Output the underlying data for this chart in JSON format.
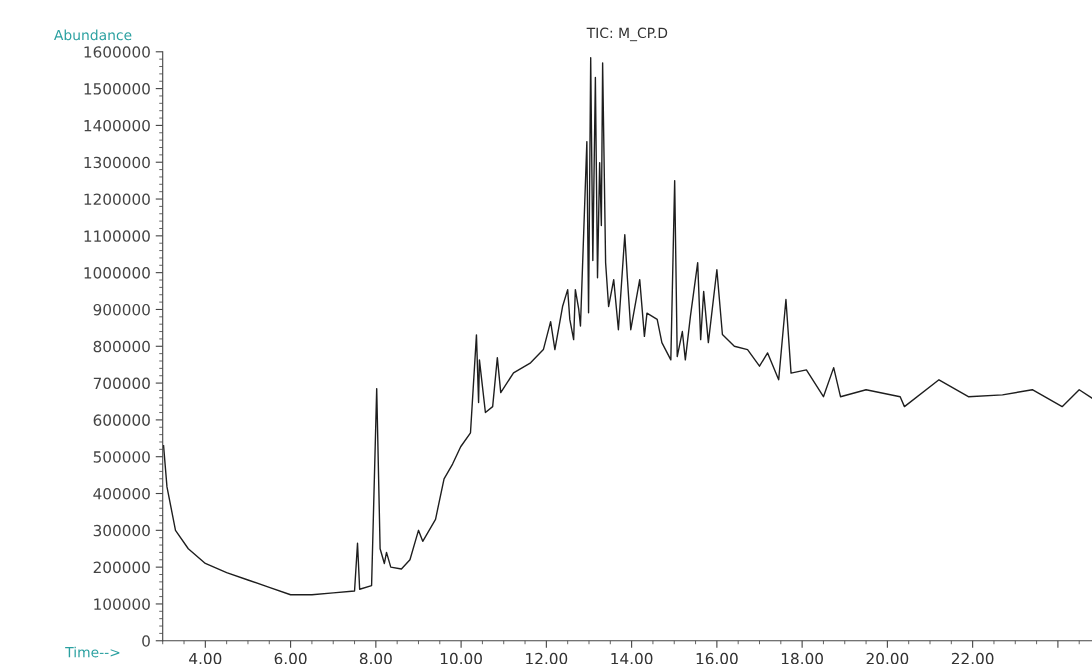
{
  "chart_data": {
    "type": "line",
    "title": "TIC: M_CP.D",
    "xlabel": "Time-->",
    "ylabel": "Abundance",
    "x": [
      3.02,
      3.1,
      3.3,
      3.6,
      4.0,
      4.5,
      5.0,
      5.5,
      6.0,
      6.5,
      7.0,
      7.5,
      7.57,
      7.62,
      7.9,
      8.02,
      8.1,
      8.2,
      8.25,
      8.35,
      8.6,
      8.8,
      9.0,
      9.1,
      9.4,
      9.6,
      9.8,
      9.99,
      10.22,
      10.36,
      10.41,
      10.43,
      10.57,
      10.74,
      10.85,
      10.93,
      11.23,
      11.63,
      11.93,
      12.1,
      12.2,
      12.38,
      12.5,
      12.55,
      12.64,
      12.68,
      12.76,
      12.8,
      12.95,
      12.99,
      13.04,
      13.09,
      13.15,
      13.2,
      13.25,
      13.29,
      13.32,
      13.39,
      13.46,
      13.58,
      13.69,
      13.84,
      13.9,
      13.98,
      14.19,
      14.3,
      14.36,
      14.6,
      14.71,
      14.92,
      15.01,
      15.07,
      15.19,
      15.26,
      15.38,
      15.55,
      15.62,
      15.69,
      15.8,
      16.0,
      16.13,
      16.41,
      16.72,
      17.0,
      17.19,
      17.45,
      17.62,
      17.74,
      18.1,
      18.5,
      18.74,
      18.9,
      19.5,
      20.3,
      20.4,
      21.21,
      21.9,
      22.7,
      23.4,
      24.1,
      24.5,
      24.8
    ],
    "series": [
      {
        "color": "#1e1e1e",
        "values": [
          530000,
          418000,
          300000,
          250000,
          210000,
          185000,
          165000,
          145000,
          125000,
          125000,
          130000,
          135000,
          265000,
          140000,
          150000,
          685000,
          250000,
          210000,
          240000,
          200000,
          195000,
          220000,
          300000,
          270000,
          330000,
          440000,
          480000,
          527000,
          565000,
          831000,
          647000,
          763000,
          620000,
          636000,
          769000,
          674000,
          728000,
          755000,
          791000,
          867000,
          791000,
          908000,
          954000,
          873000,
          818000,
          954000,
          900000,
          855000,
          1356000,
          891000,
          1584000,
          1033000,
          1530000,
          986000,
          1299000,
          1128000,
          1570000,
          1027000,
          908000,
          981000,
          845000,
          1103000,
          986000,
          845000,
          981000,
          827000,
          890000,
          873000,
          810000,
          763000,
          1250000,
          772000,
          840000,
          763000,
          882000,
          1027000,
          818000,
          949000,
          810000,
          1008000,
          832000,
          800000,
          791000,
          746000,
          782000,
          709000,
          927000,
          727000,
          736000,
          663000,
          742000,
          663000,
          682000,
          663000,
          636000,
          709000,
          663000,
          668000,
          682000,
          636000,
          682000,
          659000
        ]
      }
    ],
    "xlim": [
      3.0,
      24.8
    ],
    "xticks": [
      {
        "value": 4,
        "label": "4.00"
      },
      {
        "value": 6,
        "label": "6.00"
      },
      {
        "value": 8,
        "label": "8.00"
      },
      {
        "value": 10,
        "label": "10.00"
      },
      {
        "value": 12,
        "label": "12.00"
      },
      {
        "value": 14,
        "label": "14.00"
      },
      {
        "value": 16,
        "label": "16.00"
      },
      {
        "value": 18,
        "label": "18.00"
      },
      {
        "value": 20,
        "label": "20.00"
      },
      {
        "value": 22,
        "label": "22.00"
      },
      {
        "value": 24,
        "label": null
      }
    ],
    "ylim": [
      0,
      1600000
    ],
    "yticks": [
      0,
      100000,
      200000,
      300000,
      400000,
      500000,
      600000,
      700000,
      800000,
      900000,
      1000000,
      1100000,
      1200000,
      1300000,
      1400000,
      1500000,
      1600000
    ],
    "grid": false,
    "legend": false,
    "marker": "none",
    "line_style": "solid"
  }
}
